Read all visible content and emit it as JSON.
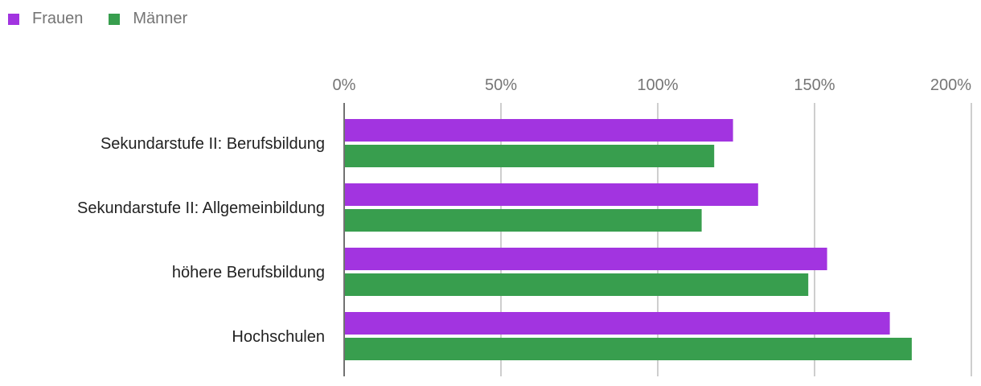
{
  "chart_data": {
    "type": "bar",
    "orientation": "horizontal",
    "categories": [
      "Sekundarstufe II: Berufsbildung",
      "Sekundarstufe II: Allgemeinbildung",
      "höhere Berufsbildung",
      "Hochschulen"
    ],
    "series": [
      {
        "name": "Frauen",
        "color": "#a234e0",
        "values": [
          124,
          132,
          154,
          174
        ]
      },
      {
        "name": "Männer",
        "color": "#389e4e",
        "values": [
          118,
          114,
          148,
          181
        ]
      }
    ],
    "xlim": [
      0,
      200
    ],
    "ticks": [
      0,
      50,
      100,
      150,
      200
    ],
    "tick_labels": [
      "0%",
      "50%",
      "100%",
      "150%",
      "200%"
    ],
    "grid": true,
    "legend_position": "top-left"
  }
}
